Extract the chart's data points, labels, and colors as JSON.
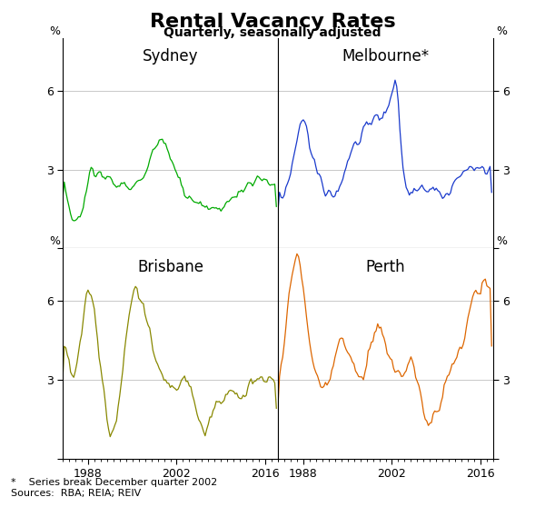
{
  "title": "Rental Vacancy Rates",
  "subtitle": "Quarterly, seasonally adjusted",
  "footnote": "*    Series break December quarter 2002",
  "sources": "Sources:  RBA; REIA; REIV",
  "colors": {
    "Sydney": "#00aa00",
    "Melbourne": "#1a3acc",
    "Brisbane": "#888800",
    "Perth": "#dd6600"
  },
  "ylim": [
    0,
    8
  ],
  "yticks": [
    0,
    3,
    6
  ],
  "xlim_year": [
    1984,
    2018
  ],
  "xticks_years": [
    1988,
    2002,
    2016
  ],
  "grid_color": "#c8c8c8",
  "background": "#ffffff",
  "title_fontsize": 16,
  "subtitle_fontsize": 10,
  "panel_label_fontsize": 12,
  "tick_fontsize": 9,
  "note_fontsize": 8
}
